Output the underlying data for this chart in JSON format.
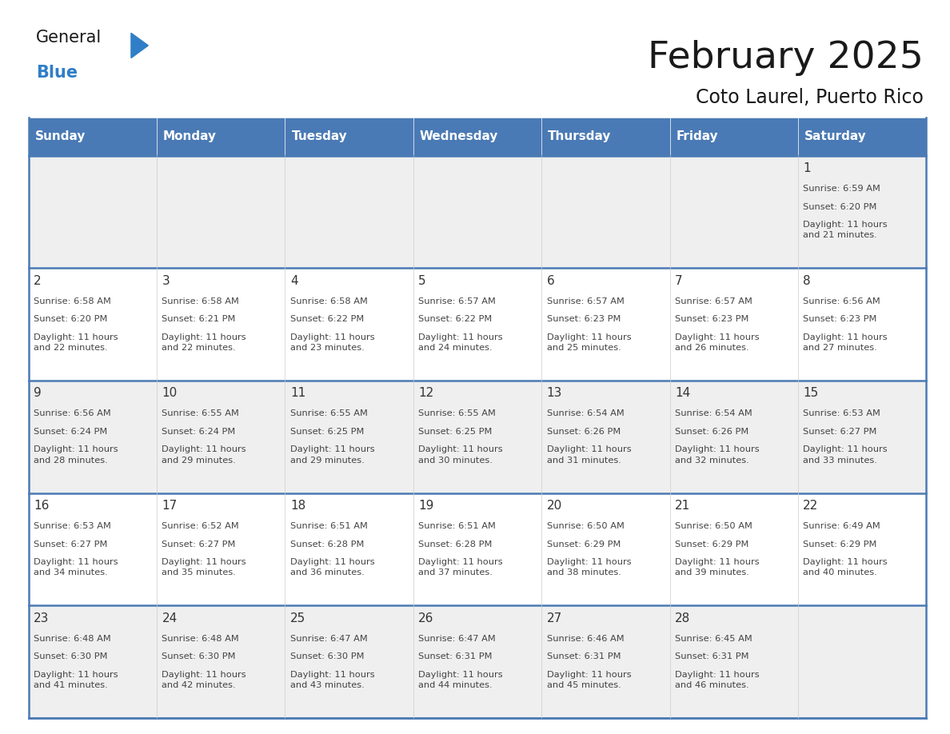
{
  "title": "February 2025",
  "subtitle": "Coto Laurel, Puerto Rico",
  "days_of_week": [
    "Sunday",
    "Monday",
    "Tuesday",
    "Wednesday",
    "Thursday",
    "Friday",
    "Saturday"
  ],
  "header_bg": "#4a7ab5",
  "header_text": "#FFFFFF",
  "cell_bg_odd": "#efefef",
  "cell_bg_even": "#FFFFFF",
  "border_color": "#4a7ab5",
  "day_num_color": "#333333",
  "info_text_color": "#444444",
  "title_color": "#1a1a1a",
  "logo_general_color": "#1a1a1a",
  "logo_blue_color": "#2F7EC7",
  "logo_triangle_color": "#2F7EC7",
  "calendar_data": [
    [
      null,
      null,
      null,
      null,
      null,
      null,
      {
        "day": 1,
        "sunrise": "6:59 AM",
        "sunset": "6:20 PM",
        "daylight": "11 hours\nand 21 minutes."
      }
    ],
    [
      {
        "day": 2,
        "sunrise": "6:58 AM",
        "sunset": "6:20 PM",
        "daylight": "11 hours\nand 22 minutes."
      },
      {
        "day": 3,
        "sunrise": "6:58 AM",
        "sunset": "6:21 PM",
        "daylight": "11 hours\nand 22 minutes."
      },
      {
        "day": 4,
        "sunrise": "6:58 AM",
        "sunset": "6:22 PM",
        "daylight": "11 hours\nand 23 minutes."
      },
      {
        "day": 5,
        "sunrise": "6:57 AM",
        "sunset": "6:22 PM",
        "daylight": "11 hours\nand 24 minutes."
      },
      {
        "day": 6,
        "sunrise": "6:57 AM",
        "sunset": "6:23 PM",
        "daylight": "11 hours\nand 25 minutes."
      },
      {
        "day": 7,
        "sunrise": "6:57 AM",
        "sunset": "6:23 PM",
        "daylight": "11 hours\nand 26 minutes."
      },
      {
        "day": 8,
        "sunrise": "6:56 AM",
        "sunset": "6:23 PM",
        "daylight": "11 hours\nand 27 minutes."
      }
    ],
    [
      {
        "day": 9,
        "sunrise": "6:56 AM",
        "sunset": "6:24 PM",
        "daylight": "11 hours\nand 28 minutes."
      },
      {
        "day": 10,
        "sunrise": "6:55 AM",
        "sunset": "6:24 PM",
        "daylight": "11 hours\nand 29 minutes."
      },
      {
        "day": 11,
        "sunrise": "6:55 AM",
        "sunset": "6:25 PM",
        "daylight": "11 hours\nand 29 minutes."
      },
      {
        "day": 12,
        "sunrise": "6:55 AM",
        "sunset": "6:25 PM",
        "daylight": "11 hours\nand 30 minutes."
      },
      {
        "day": 13,
        "sunrise": "6:54 AM",
        "sunset": "6:26 PM",
        "daylight": "11 hours\nand 31 minutes."
      },
      {
        "day": 14,
        "sunrise": "6:54 AM",
        "sunset": "6:26 PM",
        "daylight": "11 hours\nand 32 minutes."
      },
      {
        "day": 15,
        "sunrise": "6:53 AM",
        "sunset": "6:27 PM",
        "daylight": "11 hours\nand 33 minutes."
      }
    ],
    [
      {
        "day": 16,
        "sunrise": "6:53 AM",
        "sunset": "6:27 PM",
        "daylight": "11 hours\nand 34 minutes."
      },
      {
        "day": 17,
        "sunrise": "6:52 AM",
        "sunset": "6:27 PM",
        "daylight": "11 hours\nand 35 minutes."
      },
      {
        "day": 18,
        "sunrise": "6:51 AM",
        "sunset": "6:28 PM",
        "daylight": "11 hours\nand 36 minutes."
      },
      {
        "day": 19,
        "sunrise": "6:51 AM",
        "sunset": "6:28 PM",
        "daylight": "11 hours\nand 37 minutes."
      },
      {
        "day": 20,
        "sunrise": "6:50 AM",
        "sunset": "6:29 PM",
        "daylight": "11 hours\nand 38 minutes."
      },
      {
        "day": 21,
        "sunrise": "6:50 AM",
        "sunset": "6:29 PM",
        "daylight": "11 hours\nand 39 minutes."
      },
      {
        "day": 22,
        "sunrise": "6:49 AM",
        "sunset": "6:29 PM",
        "daylight": "11 hours\nand 40 minutes."
      }
    ],
    [
      {
        "day": 23,
        "sunrise": "6:48 AM",
        "sunset": "6:30 PM",
        "daylight": "11 hours\nand 41 minutes."
      },
      {
        "day": 24,
        "sunrise": "6:48 AM",
        "sunset": "6:30 PM",
        "daylight": "11 hours\nand 42 minutes."
      },
      {
        "day": 25,
        "sunrise": "6:47 AM",
        "sunset": "6:30 PM",
        "daylight": "11 hours\nand 43 minutes."
      },
      {
        "day": 26,
        "sunrise": "6:47 AM",
        "sunset": "6:31 PM",
        "daylight": "11 hours\nand 44 minutes."
      },
      {
        "day": 27,
        "sunrise": "6:46 AM",
        "sunset": "6:31 PM",
        "daylight": "11 hours\nand 45 minutes."
      },
      {
        "day": 28,
        "sunrise": "6:45 AM",
        "sunset": "6:31 PM",
        "daylight": "11 hours\nand 46 minutes."
      },
      null
    ]
  ]
}
